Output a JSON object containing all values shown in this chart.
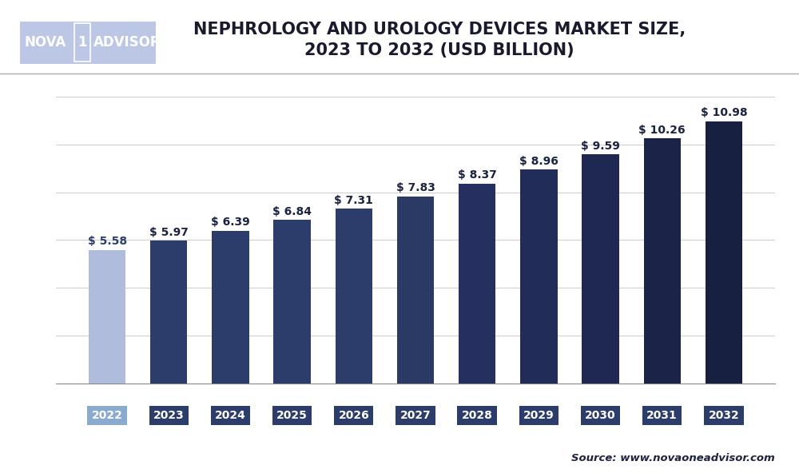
{
  "title": "NEPHROLOGY AND UROLOGY DEVICES MARKET SIZE,\n2023 TO 2032 (USD BILLION)",
  "categories": [
    "2022",
    "2023",
    "2024",
    "2025",
    "2026",
    "2027",
    "2028",
    "2029",
    "2030",
    "2031",
    "2032"
  ],
  "values": [
    5.58,
    5.97,
    6.39,
    6.84,
    7.31,
    7.83,
    8.37,
    8.96,
    9.59,
    10.26,
    10.98
  ],
  "bar_colors": [
    "#b0bcdb",
    "#2d3d6b",
    "#2d3d6b",
    "#2d3d6b",
    "#2d3d6b",
    "#2a3a65",
    "#253060",
    "#212c58",
    "#1e2850",
    "#1b2448",
    "#172040"
  ],
  "label_color": "#1a2340",
  "label_color_2022": "#2c3e6b",
  "tick_label_bg_2022": "#8aaad0",
  "tick_label_bg_rest": "#2d3d6b",
  "tick_label_color": "#ffffff",
  "ylim": [
    0,
    12.5
  ],
  "background_color": "#ffffff",
  "plot_bg_color": "#ffffff",
  "grid_color": "#d0d0d0",
  "source_text": "Source: www.novaoneadvisor.com",
  "title_fontsize": 15,
  "label_fontsize": 10,
  "tick_fontsize": 10,
  "logo_bg": "#1e3a8a",
  "logo_text_color": "#ffffff",
  "logo_box_color": "#ffffff",
  "logo_box_text": "#1e3a8a",
  "header_separator_color": "#aaaaaa"
}
